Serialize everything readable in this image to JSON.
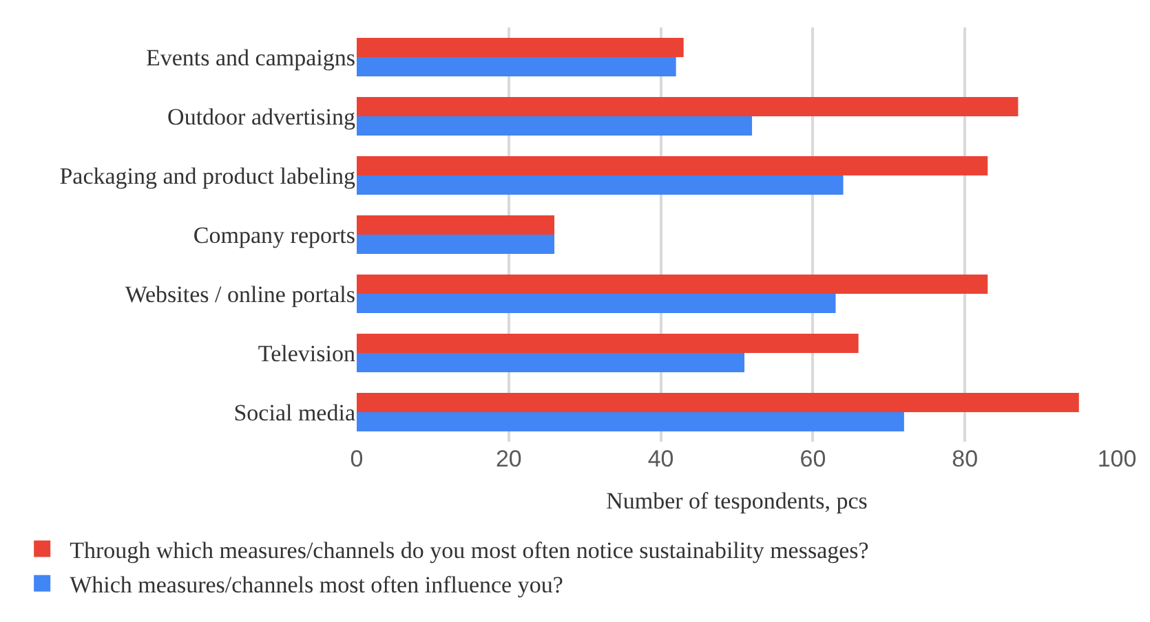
{
  "chart_data": {
    "type": "bar",
    "orientation": "horizontal",
    "categories": [
      "Events and campaigns",
      "Outdoor advertising",
      "Packaging and product labeling",
      "Company reports",
      "Websites / online portals",
      "Television",
      "Social media"
    ],
    "series": [
      {
        "name": "Through which measures/channels do you most often notice sustainability messages?",
        "color": "#ea4335",
        "values": [
          43,
          87,
          83,
          26,
          83,
          66,
          95
        ]
      },
      {
        "name": "Which measures/channels most often influence you?",
        "color": "#4285f4",
        "values": [
          42,
          52,
          64,
          26,
          63,
          51,
          72
        ]
      }
    ],
    "xlabel": "Number of tespondents, pcs",
    "xlim": [
      0,
      100
    ],
    "xticks": [
      0,
      20,
      40,
      60,
      80,
      100
    ],
    "grid": "x",
    "legend": "bottom"
  }
}
